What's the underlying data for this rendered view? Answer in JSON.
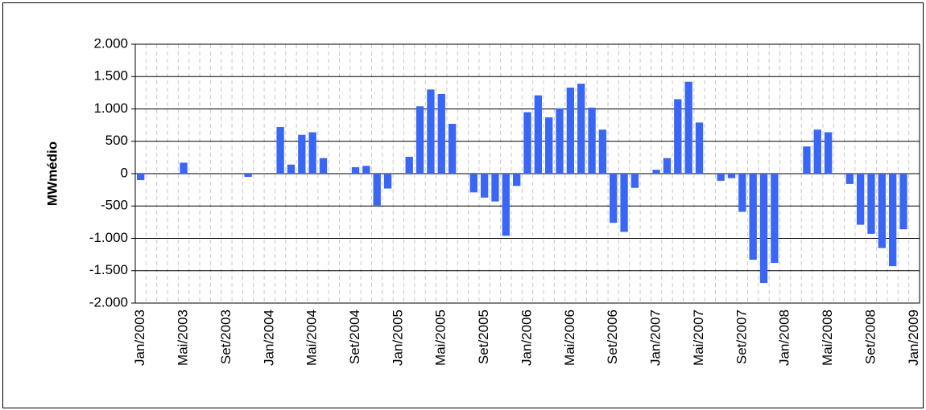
{
  "chart_data": {
    "type": "bar",
    "y_label": "MWmédio",
    "categories": [
      "Jan/2003",
      null,
      null,
      null,
      "Mai/2003",
      null,
      null,
      null,
      "Set/2003",
      null,
      null,
      null,
      "Jan/2004",
      null,
      null,
      null,
      "Mai/2004",
      null,
      null,
      null,
      "Set/2004",
      null,
      null,
      null,
      "Jan/2005",
      null,
      null,
      null,
      "Mai/2005",
      null,
      null,
      null,
      "Set/2005",
      null,
      null,
      null,
      "Jan/2006",
      null,
      null,
      null,
      "Mai/2006",
      null,
      null,
      null,
      "Set/2006",
      null,
      null,
      null,
      "Jan/2007",
      null,
      null,
      null,
      "Mai/2007",
      null,
      null,
      null,
      "Set/2007",
      null,
      null,
      null,
      "Jan/2008",
      null,
      null,
      null,
      "Mai/2008",
      null,
      null,
      null,
      "Set/2008",
      null,
      null,
      null,
      "Jan/2009"
    ],
    "values": [
      -100,
      0,
      0,
      0,
      170,
      0,
      0,
      0,
      0,
      0,
      -50,
      0,
      0,
      720,
      140,
      600,
      640,
      240,
      0,
      0,
      100,
      120,
      -490,
      -230,
      0,
      260,
      1040,
      1300,
      1230,
      770,
      0,
      -290,
      -370,
      -430,
      -960,
      -190,
      950,
      1210,
      870,
      1010,
      1330,
      1390,
      1020,
      680,
      -760,
      -900,
      -220,
      0,
      60,
      240,
      1150,
      1420,
      790,
      0,
      -110,
      -70,
      -590,
      -1330,
      -1690,
      -1380,
      0,
      0,
      420,
      680,
      640,
      0,
      -160,
      -790,
      -930,
      -1150,
      -1430,
      -860,
      null
    ],
    "color": "#3a66f5",
    "ylim": [
      -2000,
      2000
    ],
    "yticks": [
      {
        "value": -2000,
        "label": "-2.000"
      },
      {
        "value": -1500,
        "label": "-1.500"
      },
      {
        "value": -1000,
        "label": "-1.000"
      },
      -500,
      0,
      500,
      {
        "value": 1000,
        "label": "1.000"
      },
      {
        "value": 1500,
        "label": "1.500"
      },
      {
        "value": 2000,
        "label": "2.000"
      }
    ],
    "grid": true
  }
}
